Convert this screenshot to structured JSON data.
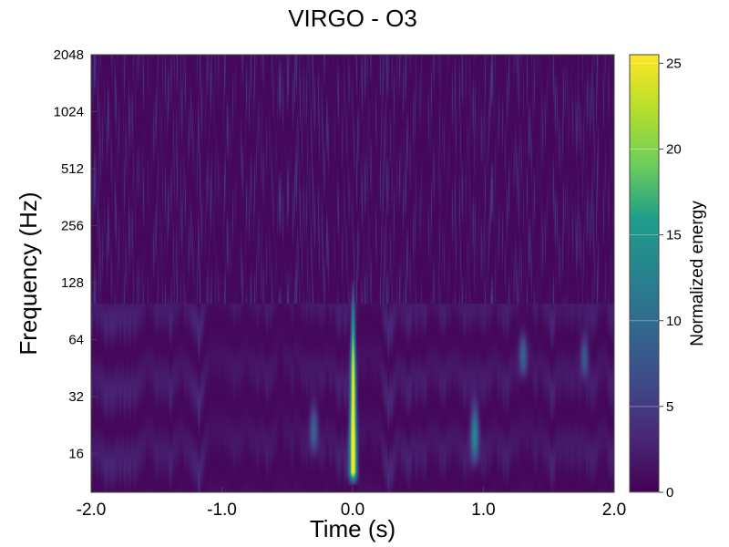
{
  "chart_data": {
    "type": "heatmap",
    "title": "VIRGO - O3",
    "xlabel": "Time (s)",
    "ylabel": "Frequency (Hz)",
    "colorbar_label": "Normalized energy",
    "xlim": [
      -2.0,
      2.0
    ],
    "ylim": [
      10,
      2048
    ],
    "yscale": "log2",
    "xticks": [
      -2.0,
      -1.0,
      0.0,
      1.0,
      2.0
    ],
    "xtick_labels": [
      "-2.0",
      "-1.0",
      "0.0",
      "1.0",
      "2.0"
    ],
    "yticks": [
      16,
      32,
      64,
      128,
      256,
      512,
      1024,
      2048
    ],
    "ytick_labels": [
      "16",
      "32",
      "64",
      "128",
      "256",
      "512",
      "1024",
      "2048"
    ],
    "colorbar_range": [
      0,
      25.5
    ],
    "colorbar_ticks": [
      0,
      5,
      10,
      15,
      20,
      25
    ],
    "colorbar_tick_labels": [
      "0",
      "5",
      "10",
      "15",
      "20",
      "25"
    ],
    "colormap": "viridis",
    "colormap_stops": [
      "#440154",
      "#482777",
      "#3f4a8a",
      "#31678e",
      "#26838f",
      "#1f9d8a",
      "#6cce5a",
      "#b6de2b",
      "#fee825"
    ],
    "background_level": 0.5,
    "features": [
      {
        "name": "chirp",
        "t": 0.0,
        "f_low": 12,
        "f_high": 110,
        "peak_energy": 25.5
      },
      {
        "name": "blip",
        "t": 0.93,
        "f_low": 14,
        "f_high": 30,
        "peak_energy": 12
      },
      {
        "name": "blip",
        "t": -0.3,
        "f_low": 16,
        "f_high": 30,
        "peak_energy": 8
      },
      {
        "name": "blip",
        "t": 1.3,
        "f_low": 40,
        "f_high": 70,
        "peak_energy": 8
      },
      {
        "name": "blip",
        "t": 1.77,
        "f_low": 40,
        "f_high": 70,
        "peak_energy": 7
      }
    ]
  }
}
